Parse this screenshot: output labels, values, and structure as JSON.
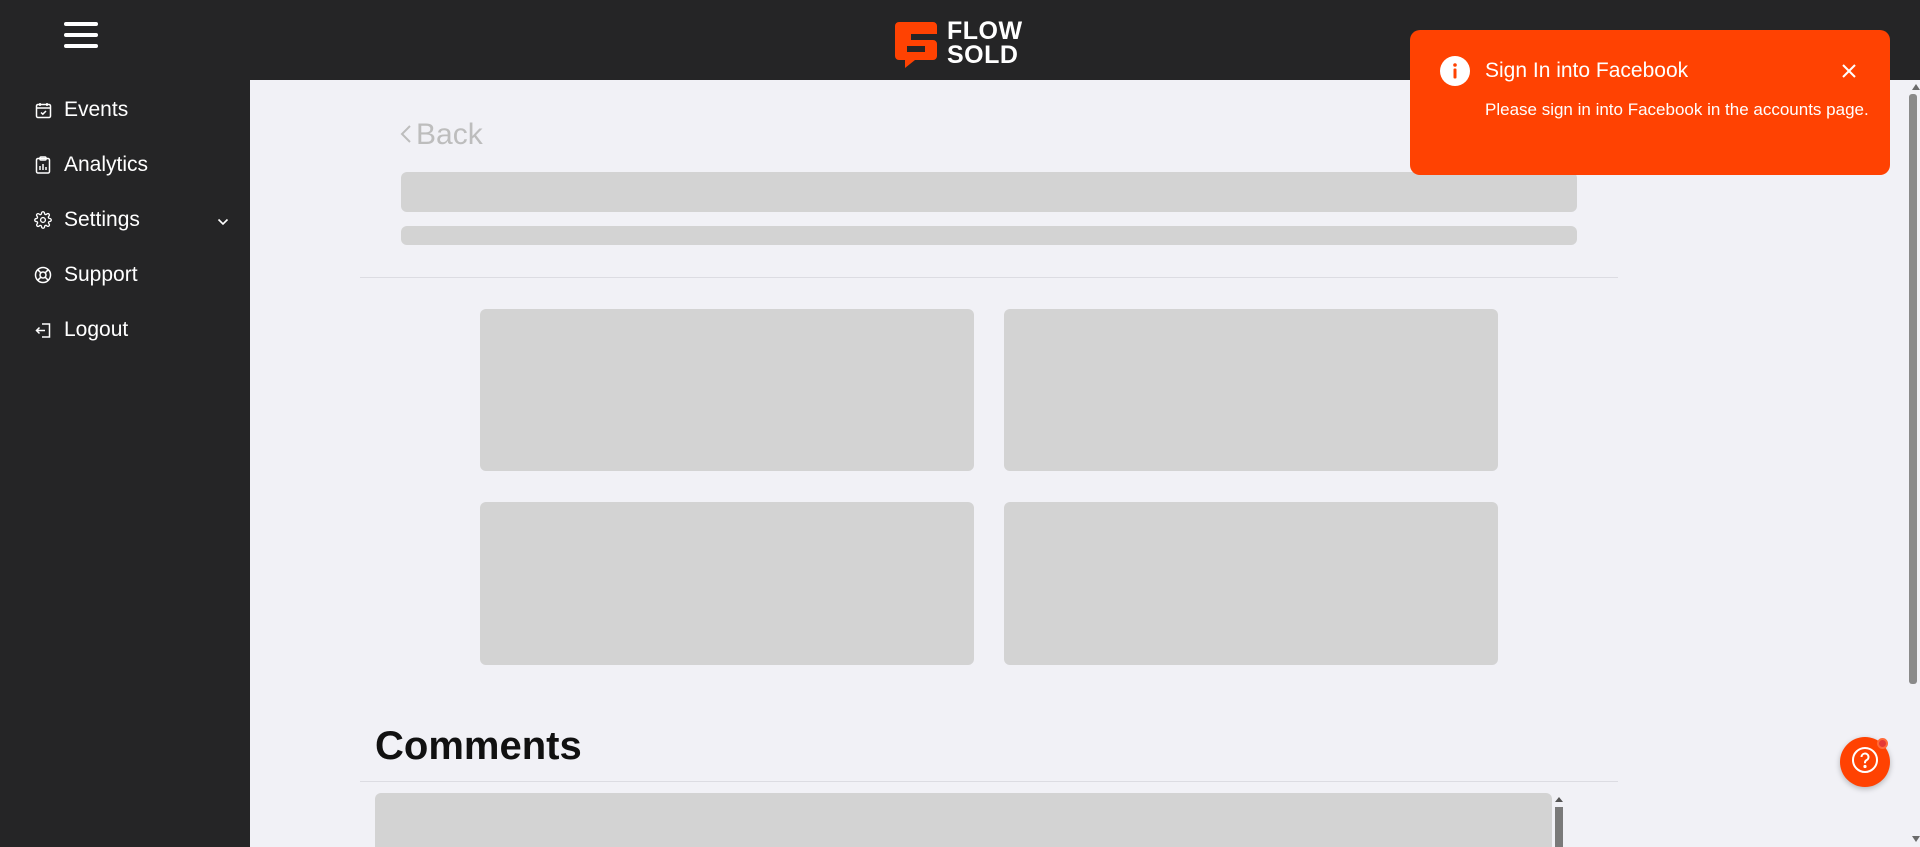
{
  "header": {
    "logo_line1": "FLOW",
    "logo_line2": "SOLD",
    "brand_color": "#ff4202"
  },
  "sidebar": {
    "items": [
      {
        "label": "Events",
        "icon": "calendar-icon"
      },
      {
        "label": "Analytics",
        "icon": "clipboard-chart-icon"
      },
      {
        "label": "Settings",
        "icon": "gear-icon",
        "expandable": true
      },
      {
        "label": "Support",
        "icon": "lifebuoy-icon"
      },
      {
        "label": "Logout",
        "icon": "logout-icon"
      }
    ]
  },
  "main": {
    "back_label": "Back",
    "comments_title": "Comments"
  },
  "toast": {
    "title": "Sign In into Facebook",
    "message": "Please sign in into Facebook in the accounts page.",
    "background": "#ff4202"
  },
  "colors": {
    "sidebar_bg": "#252526",
    "content_bg": "#f1f1f6",
    "skeleton": "#d3d3d3"
  }
}
